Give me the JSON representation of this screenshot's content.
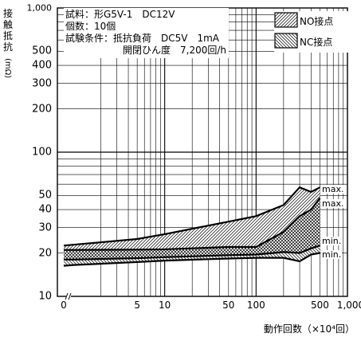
{
  "y_title": [
    "接",
    "触",
    "抵",
    "抗"
  ],
  "y_unit": "(mΩ)",
  "x_title": "動作回数（×10⁴回）",
  "y_ticks": [
    "1,000",
    "500",
    "400",
    "300",
    "200",
    "100",
    "50",
    "40",
    "30",
    "20",
    "10"
  ],
  "x_ticks": [
    "0",
    "5",
    "10",
    "50",
    "100",
    "500",
    "1,000"
  ],
  "info": {
    "line1": "試料：形G5V-1　DC12V",
    "line2": "個数：10個",
    "line3": "試験条件：抵抗負荷　DC5V　1mA",
    "line4": "開閉ひん度　7,200回/h"
  },
  "legend": {
    "no": "NO接点",
    "nc": "NC接点"
  },
  "curve_labels": {
    "max1": "max.",
    "max2": "max.",
    "min1": "min.",
    "min2": "min."
  },
  "chart_data": {
    "type": "area",
    "x_scale": "log (0 shown at left via axis break)",
    "y_scale": "log",
    "xlim": [
      0,
      1000
    ],
    "ylim": [
      10,
      1000
    ],
    "grid": true,
    "legend_position": "top-right",
    "series": [
      {
        "name": "NO接点",
        "hatch": "forward-diagonal",
        "max": {
          "x": [
            0,
            1,
            5,
            10,
            50,
            100,
            200,
            300,
            400,
            500
          ],
          "y": [
            22.5,
            22.8,
            25,
            27,
            33,
            36,
            43,
            57,
            53,
            57
          ]
        },
        "min": {
          "x": [
            0,
            1,
            5,
            10,
            50,
            100,
            200,
            300,
            400,
            500
          ],
          "y": [
            18.0,
            18.0,
            18.4,
            18.7,
            19.3,
            19.5,
            20.3,
            20.0,
            21.5,
            22.5
          ]
        }
      },
      {
        "name": "NC接点",
        "hatch": "back-diagonal",
        "max": {
          "x": [
            0,
            1,
            5,
            10,
            50,
            100,
            200,
            300,
            400,
            500
          ],
          "y": [
            21.0,
            21.0,
            21.1,
            21.2,
            22.0,
            22.0,
            28,
            36,
            40,
            48
          ]
        },
        "min": {
          "x": [
            0,
            1,
            5,
            10,
            50,
            100,
            200,
            300,
            400,
            500
          ],
          "y": [
            16.3,
            16.5,
            17.3,
            17.7,
            18.3,
            18.5,
            18.5,
            17.5,
            19.5,
            20.0
          ]
        }
      }
    ]
  }
}
